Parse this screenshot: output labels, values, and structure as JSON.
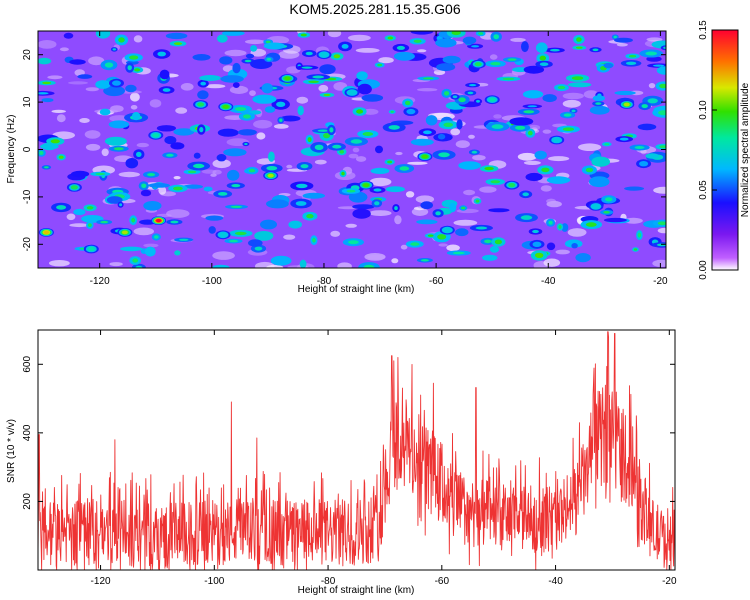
{
  "title": "KOM5.2025.281.15.35.G06",
  "colors": {
    "background": "#ffffff",
    "axis": "#000000",
    "snr_line": "#ee3333",
    "spectrogram_base": "#8f4bff"
  },
  "chart_data": [
    {
      "type": "heatmap",
      "name": "spectrogram",
      "xlabel": "Height of straight line (km)",
      "ylabel": "Frequency (Hz)",
      "xlim": [
        -131,
        -19
      ],
      "ylim": [
        -25,
        25
      ],
      "xticks": [
        -120,
        -100,
        -80,
        -60,
        -40,
        -20
      ],
      "yticks": [
        -20,
        -10,
        0,
        10,
        20
      ],
      "colorbar": {
        "label": "Normalized spectral amplitude",
        "range": [
          0,
          0.15
        ],
        "ticks": [
          "0.00",
          "0.05",
          "0.10",
          "0.15"
        ],
        "colormap": "rainbow (white-violet-blue-cyan-green-yellow-red)"
      },
      "peaks": [
        {
          "x": -109.5,
          "y": -15,
          "value": 0.15
        },
        {
          "x": -129.5,
          "y": -17.5,
          "value": 0.12
        },
        {
          "x": -115.5,
          "y": -17.5,
          "value": 0.11
        },
        {
          "x": -89.5,
          "y": -5.5,
          "value": 0.11
        },
        {
          "x": -62,
          "y": -1.5,
          "value": 0.1
        },
        {
          "x": -72.5,
          "y": -7.5,
          "value": 0.1
        },
        {
          "x": -97.5,
          "y": 9,
          "value": 0.1
        },
        {
          "x": -86.5,
          "y": 15,
          "value": 0.1
        },
        {
          "x": -26,
          "y": 9.5,
          "value": 0.11
        },
        {
          "x": -102,
          "y": 9.5,
          "value": 0.09
        },
        {
          "x": -46.5,
          "y": -7.5,
          "value": 0.09
        },
        {
          "x": -124.5,
          "y": -8,
          "value": 0.09
        },
        {
          "x": -52.5,
          "y": 18,
          "value": 0.09
        },
        {
          "x": -121.5,
          "y": -21,
          "value": 0.08
        },
        {
          "x": -110,
          "y": 3,
          "value": 0.08
        },
        {
          "x": -50,
          "y": 10.5,
          "value": 0.08
        },
        {
          "x": -38.5,
          "y": 2,
          "value": 0.07
        },
        {
          "x": -98,
          "y": -18,
          "value": 0.07
        },
        {
          "x": -31.5,
          "y": -12,
          "value": 0.07
        },
        {
          "x": -75,
          "y": 12,
          "value": 0.07
        },
        {
          "x": -58,
          "y": -17,
          "value": 0.07
        },
        {
          "x": -80,
          "y": 20,
          "value": 0.07
        },
        {
          "x": -64.5,
          "y": 8,
          "value": 0.06
        },
        {
          "x": -42,
          "y": -20,
          "value": 0.06
        },
        {
          "x": -117,
          "y": 14,
          "value": 0.06
        },
        {
          "x": -23,
          "y": -3,
          "value": 0.06
        }
      ]
    },
    {
      "type": "line",
      "name": "snr",
      "xlabel": "Height of straight line (km)",
      "ylabel": "SNR (10 * v/v)",
      "xlim": [
        -131,
        -19
      ],
      "ylim": [
        0,
        700
      ],
      "xticks": [
        -120,
        -100,
        -80,
        -60,
        -40,
        -20
      ],
      "yticks": [
        200,
        400,
        600
      ],
      "series": [
        {
          "name": "SNR",
          "x": [
            -131,
            -127,
            -123,
            -119,
            -115,
            -111,
            -107,
            -103,
            -99,
            -95,
            -91,
            -87,
            -83,
            -79,
            -75,
            -71,
            -70,
            -69,
            -68,
            -66,
            -64,
            -62,
            -60,
            -58,
            -56,
            -52,
            -48,
            -44,
            -40,
            -37,
            -35,
            -33,
            -31,
            -30,
            -29,
            -27,
            -25,
            -23,
            -21,
            -19
          ],
          "baseline": [
            105,
            108,
            112,
            110,
            105,
            102,
            100,
            105,
            110,
            115,
            112,
            110,
            110,
            108,
            112,
            130,
            250,
            340,
            380,
            360,
            320,
            290,
            250,
            200,
            175,
            160,
            150,
            148,
            150,
            190,
            260,
            380,
            400,
            410,
            380,
            300,
            200,
            120,
            90,
            105
          ],
          "spread": [
            150,
            150,
            150,
            150,
            150,
            150,
            150,
            150,
            150,
            150,
            150,
            150,
            150,
            150,
            150,
            160,
            190,
            220,
            230,
            220,
            210,
            200,
            190,
            175,
            160,
            155,
            150,
            150,
            150,
            160,
            180,
            210,
            230,
            240,
            230,
            200,
            170,
            140,
            130,
            150
          ],
          "peaks": [
            {
              "x": -130.8,
              "y": 395
            },
            {
              "x": -68.8,
              "y": 625
            },
            {
              "x": -67.7,
              "y": 620
            },
            {
              "x": -61.5,
              "y": 545
            },
            {
              "x": -54,
              "y": 532
            },
            {
              "x": -30.8,
              "y": 695
            },
            {
              "x": -29.6,
              "y": 690
            },
            {
              "x": -97,
              "y": 490
            },
            {
              "x": -92.5,
              "y": 385
            },
            {
              "x": -117.5,
              "y": 380
            }
          ]
        }
      ]
    }
  ]
}
